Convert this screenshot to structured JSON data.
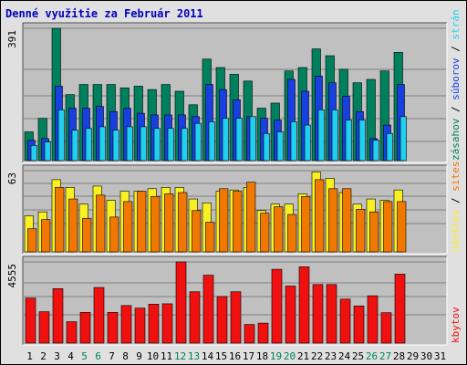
{
  "title": "Denné využitie za Február 2011",
  "colors": {
    "frame_bg": "#e0e0e0",
    "panel_bg": "#c0c0c0",
    "grid": "#808080",
    "title": "#0000c0",
    "visits": "#00805c",
    "pages": "#1840e0",
    "hits": "#20d0f0",
    "sites": "#f07800",
    "visitors": "#f8f020",
    "kbytes": "#f01010",
    "weekend_label": "#00805c",
    "weekday_label": "#000000"
  },
  "chart_data": [
    {
      "type": "bar",
      "panel": "top",
      "max_label": "391",
      "ylim": [
        0,
        391
      ],
      "legend": [
        "zásahov",
        "/",
        "súborov",
        "/",
        "strán"
      ],
      "categories": [
        "1",
        "2",
        "3",
        "4",
        "5",
        "6",
        "7",
        "8",
        "9",
        "10",
        "11",
        "12",
        "13",
        "14",
        "15",
        "16",
        "17",
        "18",
        "19",
        "20",
        "21",
        "22",
        "23",
        "24",
        "25",
        "26",
        "27",
        "28",
        "29",
        "30",
        "31"
      ],
      "series": [
        {
          "name": "zásahov",
          "color_key": "visits",
          "values": [
            85,
            125,
            391,
            195,
            225,
            225,
            225,
            215,
            220,
            210,
            225,
            205,
            165,
            300,
            275,
            255,
            235,
            155,
            170,
            265,
            275,
            330,
            310,
            270,
            230,
            240,
            265,
            320,
            0,
            0,
            0
          ]
        },
        {
          "name": "súborov",
          "color_key": "pages",
          "values": [
            60,
            65,
            220,
            155,
            155,
            160,
            145,
            155,
            140,
            135,
            135,
            135,
            130,
            225,
            210,
            180,
            130,
            125,
            120,
            240,
            205,
            250,
            230,
            190,
            145,
            65,
            105,
            225,
            0,
            0,
            0
          ]
        },
        {
          "name": "strán",
          "color_key": "hits",
          "values": [
            45,
            55,
            150,
            90,
            95,
            100,
            90,
            100,
            100,
            95,
            95,
            95,
            110,
            115,
            125,
            125,
            130,
            80,
            85,
            115,
            105,
            150,
            150,
            120,
            120,
            60,
            80,
            130,
            0,
            0,
            0
          ]
        }
      ]
    },
    {
      "type": "bar",
      "panel": "middle",
      "max_label": "63",
      "ylim": [
        0,
        63
      ],
      "legend": [
        "návštev",
        "/",
        "sites"
      ],
      "categories": [
        "1",
        "2",
        "3",
        "4",
        "5",
        "6",
        "7",
        "8",
        "9",
        "10",
        "11",
        "12",
        "13",
        "14",
        "15",
        "16",
        "17",
        "18",
        "19",
        "20",
        "21",
        "22",
        "23",
        "24",
        "25",
        "26",
        "27",
        "28",
        "29",
        "30",
        "31"
      ],
      "series": [
        {
          "name": "návštev",
          "color_key": "visitors",
          "values": [
            28,
            31,
            56,
            50,
            37,
            51,
            40,
            47,
            47,
            49,
            50,
            50,
            41,
            38,
            47,
            48,
            50,
            32,
            37,
            37,
            45,
            62,
            57,
            46,
            37,
            41,
            40,
            48,
            0,
            0,
            0
          ]
        },
        {
          "name": "sites",
          "color_key": "sites",
          "values": [
            18,
            25,
            50,
            41,
            26,
            44,
            27,
            39,
            47,
            43,
            45,
            46,
            32,
            23,
            49,
            47,
            54,
            30,
            35,
            29,
            43,
            56,
            49,
            49,
            33,
            31,
            39,
            39,
            0,
            0,
            0
          ]
        }
      ]
    },
    {
      "type": "bar",
      "panel": "bottom",
      "max_label": "4555",
      "ylim": [
        0,
        4555
      ],
      "legend": [
        "kbytov"
      ],
      "categories": [
        "1",
        "2",
        "3",
        "4",
        "5",
        "6",
        "7",
        "8",
        "9",
        "10",
        "11",
        "12",
        "13",
        "14",
        "15",
        "16",
        "17",
        "18",
        "19",
        "20",
        "21",
        "22",
        "23",
        "24",
        "25",
        "26",
        "27",
        "28",
        "29",
        "30",
        "31"
      ],
      "series": [
        {
          "name": "kbytov",
          "color_key": "kbytes",
          "values": [
            2525,
            1760,
            3055,
            1200,
            1725,
            3120,
            1725,
            2105,
            1965,
            2185,
            2205,
            4555,
            2880,
            3810,
            2615,
            2880,
            1045,
            1120,
            4140,
            3200,
            4280,
            3285,
            3285,
            2465,
            2085,
            2655,
            1705,
            3870,
            0,
            0,
            0
          ]
        }
      ]
    }
  ],
  "x_labels": [
    {
      "label": "1",
      "weekend": false
    },
    {
      "label": "2",
      "weekend": false
    },
    {
      "label": "3",
      "weekend": false
    },
    {
      "label": "4",
      "weekend": false
    },
    {
      "label": "5",
      "weekend": true
    },
    {
      "label": "6",
      "weekend": true
    },
    {
      "label": "7",
      "weekend": false
    },
    {
      "label": "8",
      "weekend": false
    },
    {
      "label": "9",
      "weekend": false
    },
    {
      "label": "10",
      "weekend": false
    },
    {
      "label": "11",
      "weekend": false
    },
    {
      "label": "12",
      "weekend": true
    },
    {
      "label": "13",
      "weekend": true
    },
    {
      "label": "14",
      "weekend": false
    },
    {
      "label": "15",
      "weekend": false
    },
    {
      "label": "16",
      "weekend": false
    },
    {
      "label": "17",
      "weekend": false
    },
    {
      "label": "18",
      "weekend": false
    },
    {
      "label": "19",
      "weekend": true
    },
    {
      "label": "20",
      "weekend": true
    },
    {
      "label": "21",
      "weekend": false
    },
    {
      "label": "22",
      "weekend": false
    },
    {
      "label": "23",
      "weekend": false
    },
    {
      "label": "24",
      "weekend": false
    },
    {
      "label": "25",
      "weekend": false
    },
    {
      "label": "26",
      "weekend": true
    },
    {
      "label": "27",
      "weekend": true
    },
    {
      "label": "28",
      "weekend": false
    },
    {
      "label": "29",
      "weekend": false
    },
    {
      "label": "30",
      "weekend": false
    },
    {
      "label": "31",
      "weekend": false
    }
  ]
}
